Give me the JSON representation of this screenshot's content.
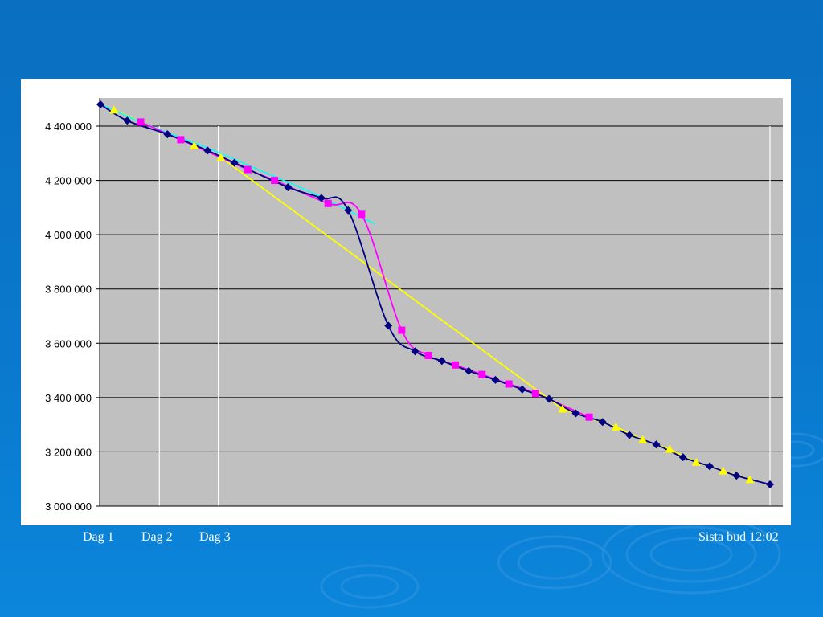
{
  "colors": {
    "background": "#0a74c6",
    "plot_area": "#c0c0c0",
    "series_colors": [
      "#000080",
      "#ff00ff",
      "#ffff00",
      "#00ffff"
    ]
  },
  "x_labels": {
    "day1": "Dag 1",
    "day2": "Dag 2",
    "day3": "Dag 3",
    "final": "Sista bud  12:02"
  },
  "chart_data": {
    "type": "line",
    "title": "",
    "xlabel": "",
    "ylabel": "",
    "ylim": [
      3000000,
      4500000
    ],
    "xlim": [
      0,
      50
    ],
    "y_ticks": [
      {
        "value": 3000000,
        "label": "3 000 000"
      },
      {
        "value": 3200000,
        "label": "3 200 000"
      },
      {
        "value": 3400000,
        "label": "3 400 000"
      },
      {
        "value": 3600000,
        "label": "3 600 000"
      },
      {
        "value": 3800000,
        "label": "3 800 000"
      },
      {
        "value": 4000000,
        "label": "4 000 000"
      },
      {
        "value": 4200000,
        "label": "4 200 000"
      },
      {
        "value": 4400000,
        "label": "4 400 000"
      }
    ],
    "grid": true,
    "day_markers_x": [
      0,
      4.4,
      8.8,
      50
    ],
    "series": [
      {
        "marker": "diamond",
        "color": "#000080",
        "points": [
          [
            0,
            4480000
          ],
          [
            2,
            4420000
          ],
          [
            5,
            4370000
          ],
          [
            8,
            4310000
          ],
          [
            10,
            4265000
          ],
          [
            14,
            4175000
          ],
          [
            16.5,
            4135000
          ],
          [
            18.5,
            4090000
          ],
          [
            21.5,
            3665000
          ],
          [
            23.5,
            3570000
          ],
          [
            25.5,
            3535000
          ],
          [
            27.5,
            3498000
          ],
          [
            29.5,
            3465000
          ],
          [
            31.5,
            3430000
          ],
          [
            33.5,
            3395000
          ],
          [
            35.5,
            3342000
          ],
          [
            37.5,
            3310000
          ],
          [
            39.5,
            3262000
          ],
          [
            41.5,
            3227000
          ],
          [
            43.5,
            3180000
          ],
          [
            45.5,
            3147000
          ],
          [
            47.5,
            3112000
          ],
          [
            50,
            3080000
          ]
        ]
      },
      {
        "marker": "square",
        "color": "#ff00ff",
        "points": [
          [
            3,
            4415000
          ],
          [
            6,
            4350000
          ],
          [
            11,
            4240000
          ],
          [
            13,
            4200000
          ],
          [
            17,
            4115000
          ],
          [
            19.5,
            4075000
          ],
          [
            22.5,
            3648000
          ],
          [
            24.5,
            3555000
          ],
          [
            26.5,
            3520000
          ],
          [
            28.5,
            3485000
          ],
          [
            30.5,
            3450000
          ],
          [
            32.5,
            3415000
          ],
          [
            36.5,
            3328000
          ]
        ]
      },
      {
        "marker": "triangle",
        "color": "#ffff00",
        "points": [
          [
            1,
            4460000
          ],
          [
            7,
            4328000
          ],
          [
            9,
            4285000
          ],
          [
            34.5,
            3358000
          ],
          [
            38.5,
            3292000
          ],
          [
            40.5,
            3245000
          ],
          [
            42.5,
            3210000
          ],
          [
            44.5,
            3162000
          ],
          [
            46.5,
            3130000
          ],
          [
            48.5,
            3098000
          ]
        ]
      },
      {
        "marker": "none",
        "color": "#00ffff",
        "points": [
          [
            0,
            4480000
          ],
          [
            4,
            4395000
          ],
          [
            8,
            4320000
          ],
          [
            12,
            4235000
          ],
          [
            16,
            4150000
          ],
          [
            20.5,
            4040000
          ]
        ]
      }
    ]
  }
}
